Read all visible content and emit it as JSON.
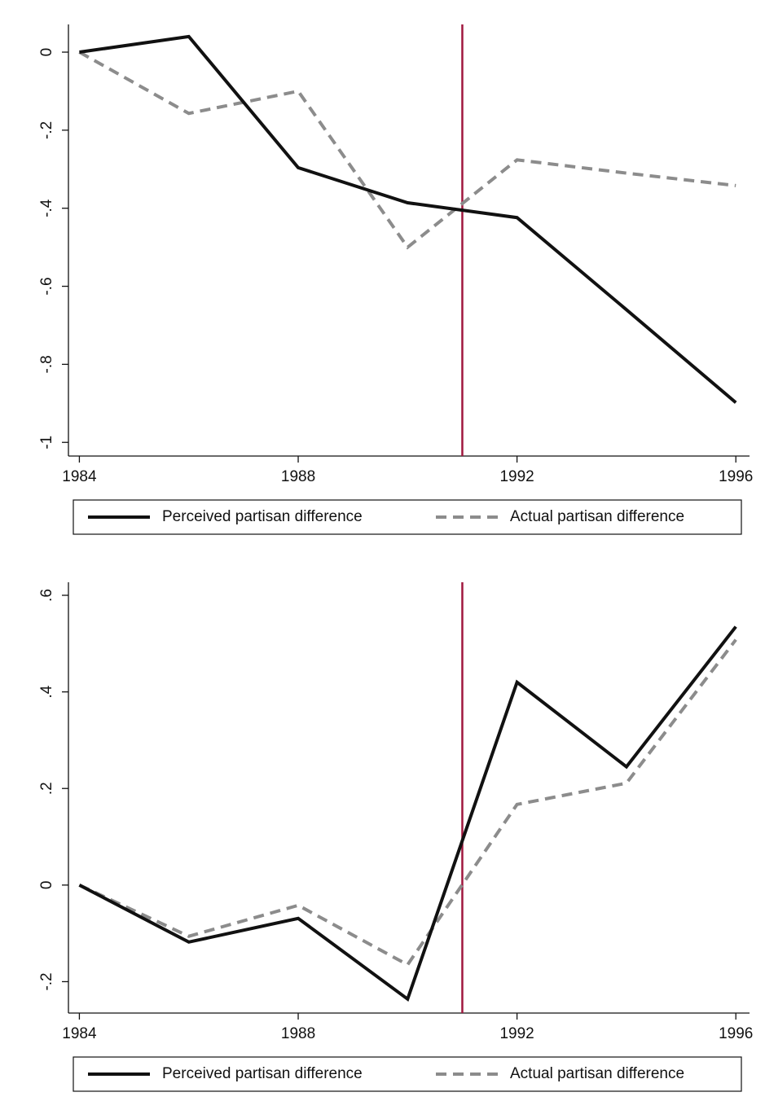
{
  "chart_data": [
    {
      "type": "line",
      "x": [
        1984,
        1986,
        1988,
        1990,
        1992,
        1994,
        1996
      ],
      "series": [
        {
          "name": "Perceived partisan difference",
          "color": "#111111",
          "dash": "solid",
          "values": [
            0,
            0.04,
            -0.296,
            -0.386,
            -0.424,
            -0.66,
            -0.898
          ]
        },
        {
          "name": "Actual partisan difference",
          "color": "#8c8c8c",
          "dash": "dashed",
          "values": [
            0,
            -0.157,
            -0.1,
            -0.5,
            -0.276,
            -0.31,
            -0.342
          ]
        }
      ],
      "vline": {
        "value": 1991,
        "color": "#a0173e"
      },
      "xlim": [
        1983.8,
        1996.25
      ],
      "xticks": [
        1984,
        1988,
        1992,
        1996
      ],
      "ylim": [
        -1.035,
        0.071
      ],
      "yticks": [
        0,
        {
          "value": -0.2,
          "label": "-.2"
        },
        {
          "value": -0.4,
          "label": "-.4"
        },
        {
          "value": -0.6,
          "label": "-.6"
        },
        {
          "value": -0.8,
          "label": "-.8"
        },
        -1
      ]
    },
    {
      "type": "line",
      "x": [
        1984,
        1986,
        1988,
        1990,
        1992,
        1994,
        1996
      ],
      "series": [
        {
          "name": "Perceived partisan difference",
          "color": "#111111",
          "dash": "solid",
          "values": [
            0,
            -0.118,
            -0.069,
            -0.236,
            0.42,
            0.245,
            0.535
          ]
        },
        {
          "name": "Actual partisan difference",
          "color": "#8c8c8c",
          "dash": "dashed",
          "values": [
            0,
            -0.106,
            -0.042,
            -0.165,
            0.167,
            0.211,
            0.508
          ]
        }
      ],
      "vline": {
        "value": 1991,
        "color": "#a0173e"
      },
      "xlim": [
        1983.8,
        1996.25
      ],
      "xticks": [
        1984,
        1988,
        1992,
        1996
      ],
      "ylim": [
        -0.265,
        0.627
      ],
      "yticks": [
        {
          "value": -0.2,
          "label": "-.2"
        },
        0,
        {
          "value": 0.2,
          "label": ".2"
        },
        {
          "value": 0.4,
          "label": ".4"
        },
        {
          "value": 0.6,
          "label": ".6"
        }
      ]
    }
  ]
}
